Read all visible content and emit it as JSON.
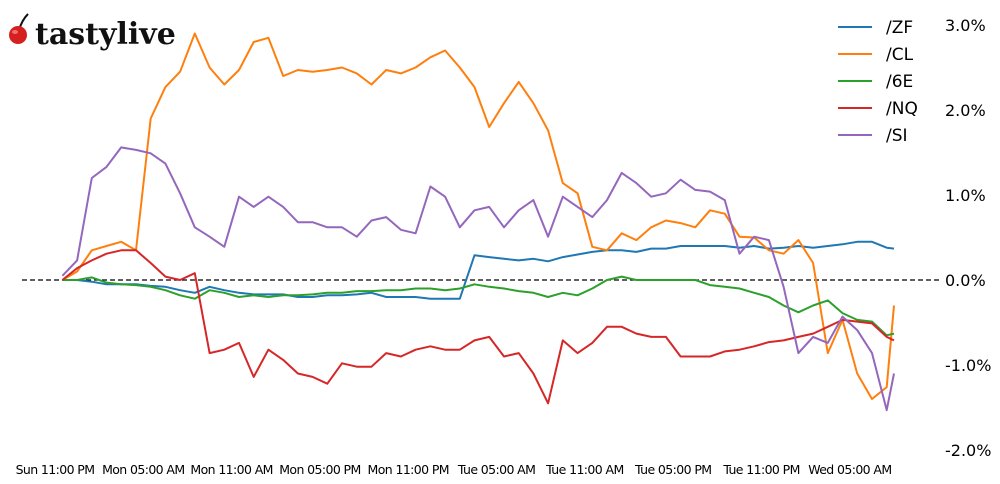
{
  "logo": {
    "text": "tastylive",
    "cherry_color": "#d62020"
  },
  "chart_data": {
    "type": "line",
    "title": "",
    "xlabel": "",
    "ylabel": "",
    "ylim": [
      -2.0,
      3.0
    ],
    "y_ticks": [
      "3.0%",
      "2.0%",
      "1.0%",
      "0.0%",
      "-1.0%",
      "-2.0%"
    ],
    "y_tick_values": [
      3,
      2,
      1,
      0,
      -1,
      -2
    ],
    "y_axis_side": "right",
    "x_ticks": [
      "Sun 11:00 PM",
      "Mon 05:00 AM",
      "Mon 11:00 AM",
      "Mon 05:00 PM",
      "Mon 11:00 PM",
      "Tue 05:00 AM",
      "Tue 11:00 AM",
      "Tue 05:00 PM",
      "Tue 11:00 PM",
      "Wed 05:00 AM"
    ],
    "x_tick_values": [
      "Sun 23:00",
      "Mon 05:00",
      "Mon 11:00",
      "Mon 17:00",
      "Mon 23:00",
      "Tue 05:00",
      "Tue 11:00",
      "Tue 17:00",
      "Tue 23:00",
      "Wed 05:00"
    ],
    "zero_line": "dashed",
    "grid": false,
    "legend_position": "top-right",
    "x": [
      "Sun 23:30",
      "Mon 00:30",
      "Mon 01:30",
      "Mon 02:30",
      "Mon 03:30",
      "Mon 04:30",
      "Mon 05:30",
      "Mon 06:30",
      "Mon 07:30",
      "Mon 08:30",
      "Mon 09:30",
      "Mon 10:30",
      "Mon 11:30",
      "Mon 12:30",
      "Mon 13:30",
      "Mon 14:30",
      "Mon 15:30",
      "Mon 16:30",
      "Mon 17:30",
      "Mon 18:30",
      "Mon 19:30",
      "Mon 20:30",
      "Mon 21:30",
      "Mon 22:30",
      "Mon 23:30",
      "Tue 00:30",
      "Tue 01:30",
      "Tue 02:30",
      "Tue 03:30",
      "Tue 04:30",
      "Tue 05:30",
      "Tue 06:30",
      "Tue 07:30",
      "Tue 08:30",
      "Tue 09:30",
      "Tue 10:30",
      "Tue 11:30",
      "Tue 12:30",
      "Tue 13:30",
      "Tue 14:30",
      "Tue 15:30",
      "Tue 16:30",
      "Tue 17:30",
      "Tue 18:30",
      "Tue 19:30",
      "Tue 20:30",
      "Tue 21:30",
      "Tue 22:30",
      "Tue 23:30",
      "Wed 00:30",
      "Wed 01:30",
      "Wed 02:30",
      "Wed 03:30",
      "Wed 04:30",
      "Wed 05:30",
      "Wed 06:30",
      "Wed 07:30",
      "Wed 08:00"
    ],
    "series": [
      {
        "name": "/ZF",
        "color": "#1f77b4",
        "values": [
          0,
          0,
          -0.02,
          -0.05,
          -0.05,
          -0.05,
          -0.07,
          -0.08,
          -0.12,
          -0.15,
          -0.08,
          -0.12,
          -0.15,
          -0.17,
          -0.17,
          -0.17,
          -0.2,
          -0.2,
          -0.18,
          -0.18,
          -0.17,
          -0.15,
          -0.2,
          -0.2,
          -0.2,
          -0.22,
          -0.22,
          -0.22,
          0.29,
          0.27,
          0.25,
          0.23,
          0.25,
          0.22,
          0.27,
          0.3,
          0.33,
          0.35,
          0.35,
          0.33,
          0.37,
          0.37,
          0.4,
          0.4,
          0.4,
          0.4,
          0.38,
          0.4,
          0.37,
          0.38,
          0.4,
          0.38,
          0.4,
          0.42,
          0.45,
          0.45,
          0.38,
          0.37
        ]
      },
      {
        "name": "/CL",
        "color": "#ff7f0e",
        "values": [
          0.0,
          0.1,
          0.35,
          0.4,
          0.45,
          0.35,
          1.9,
          2.27,
          2.45,
          2.9,
          2.5,
          2.3,
          2.47,
          2.8,
          2.85,
          2.4,
          2.47,
          2.45,
          2.47,
          2.5,
          2.43,
          2.3,
          2.47,
          2.43,
          2.5,
          2.62,
          2.7,
          2.5,
          2.27,
          1.8,
          2.08,
          2.33,
          2.08,
          1.76,
          1.14,
          1.02,
          0.39,
          0.35,
          0.55,
          0.47,
          0.62,
          0.7,
          0.67,
          0.62,
          0.82,
          0.78,
          0.51,
          0.5,
          0.35,
          0.31,
          0.47,
          0.2,
          -0.86,
          -0.47,
          -1.1,
          -1.4,
          -1.26,
          -0.3
        ]
      },
      {
        "name": "/6E",
        "color": "#2ca02c",
        "values": [
          0,
          0,
          0.03,
          -0.03,
          -0.05,
          -0.06,
          -0.08,
          -0.12,
          -0.18,
          -0.22,
          -0.12,
          -0.15,
          -0.2,
          -0.18,
          -0.2,
          -0.18,
          -0.18,
          -0.17,
          -0.15,
          -0.15,
          -0.13,
          -0.13,
          -0.12,
          -0.12,
          -0.1,
          -0.1,
          -0.12,
          -0.1,
          -0.05,
          -0.08,
          -0.1,
          -0.13,
          -0.15,
          -0.2,
          -0.15,
          -0.18,
          -0.1,
          0,
          0.04,
          0,
          0,
          0,
          0,
          0,
          -0.06,
          -0.08,
          -0.1,
          -0.15,
          -0.2,
          -0.3,
          -0.38,
          -0.3,
          -0.24,
          -0.39,
          -0.47,
          -0.49,
          -0.65,
          -0.63
        ]
      },
      {
        "name": "/NQ",
        "color": "#d62728",
        "values": [
          0,
          0.14,
          0.23,
          0.31,
          0.35,
          0.35,
          0.2,
          0.04,
          0,
          0.08,
          -0.86,
          -0.82,
          -0.74,
          -1.14,
          -0.82,
          -0.94,
          -1.1,
          -1.14,
          -1.22,
          -0.98,
          -1.02,
          -1.02,
          -0.86,
          -0.9,
          -0.82,
          -0.78,
          -0.82,
          -0.82,
          -0.71,
          -0.67,
          -0.9,
          -0.86,
          -1.1,
          -1.45,
          -0.71,
          -0.86,
          -0.74,
          -0.55,
          -0.55,
          -0.63,
          -0.67,
          -0.67,
          -0.9,
          -0.9,
          -0.9,
          -0.84,
          -0.82,
          -0.78,
          -0.73,
          -0.71,
          -0.67,
          -0.63,
          -0.55,
          -0.47,
          -0.49,
          -0.51,
          -0.67,
          -0.71
        ]
      },
      {
        "name": "/SI",
        "color": "#9467bd",
        "values": [
          0.05,
          0.23,
          1.2,
          1.33,
          1.56,
          1.53,
          1.49,
          1.37,
          1.02,
          0.62,
          0.51,
          0.39,
          0.98,
          0.86,
          0.98,
          0.86,
          0.68,
          0.68,
          0.62,
          0.62,
          0.51,
          0.7,
          0.74,
          0.59,
          0.55,
          1.1,
          0.98,
          0.62,
          0.82,
          0.86,
          0.62,
          0.82,
          0.94,
          0.51,
          0.98,
          0.86,
          0.74,
          0.94,
          1.26,
          1.14,
          0.98,
          1.02,
          1.18,
          1.06,
          1.04,
          0.94,
          0.31,
          0.51,
          0.47,
          -0.08,
          -0.86,
          -0.67,
          -0.74,
          -0.43,
          -0.59,
          -0.86,
          -1.53,
          -1.1
        ]
      }
    ]
  }
}
